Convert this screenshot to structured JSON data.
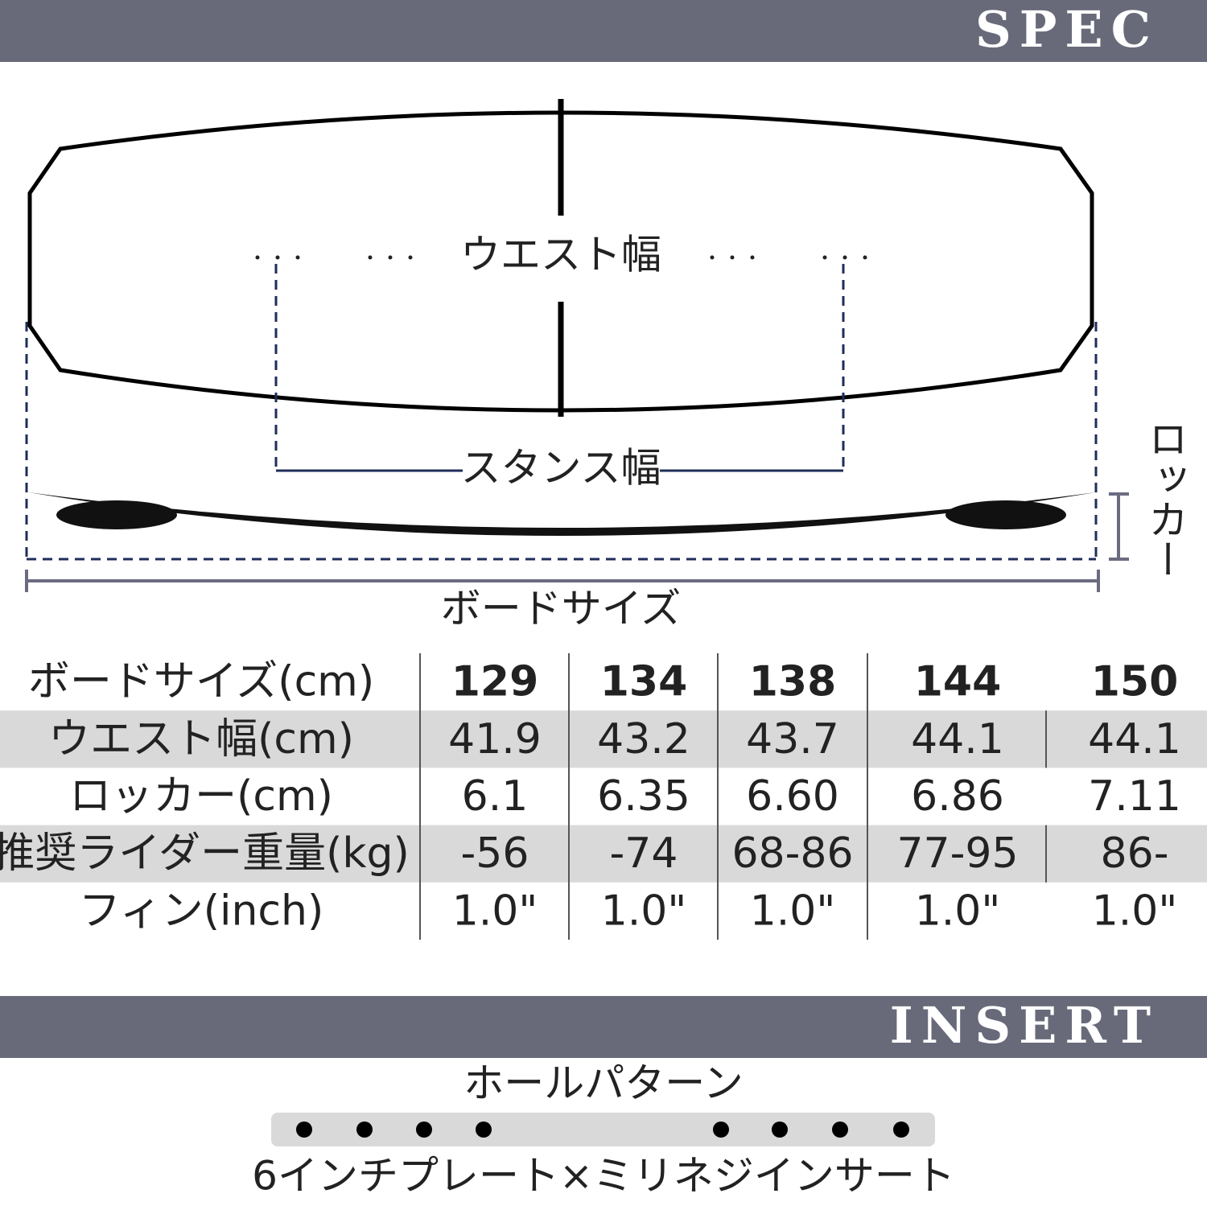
{
  "spec_header": "SPEC",
  "diagram": {
    "waist": "ウエスト幅",
    "stance": "スタンス幅",
    "rocker": "ロッカー",
    "board_size": "ボードサイズ"
  },
  "table": {
    "header": [
      "ボードサイズ(cm)",
      "129",
      "134",
      "138",
      "144",
      "150"
    ],
    "rows": [
      [
        "ウエスト幅(cm)",
        "41.9",
        "43.2",
        "43.7",
        "44.1",
        "44.1"
      ],
      [
        "ロッカー(cm)",
        "6.1",
        "6.35",
        "6.60",
        "6.86",
        "7.11"
      ],
      [
        "推奨ライダー重量(kg)",
        "-56",
        "-74",
        "68-86",
        "77-95",
        "86-"
      ],
      [
        "フィン(inch)",
        "1.0\"",
        "1.0\"",
        "1.0\"",
        "1.0\"",
        "1.0\""
      ]
    ]
  },
  "insert_header": "INSERT",
  "insert": {
    "title": "ホールパターン",
    "caption": "6インチプレート×ミリネジインサート"
  }
}
